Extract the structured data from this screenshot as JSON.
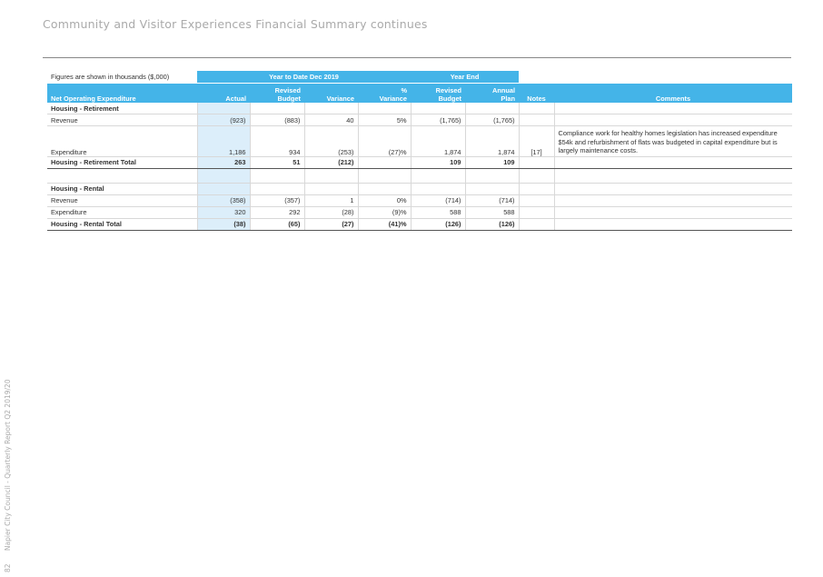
{
  "header": {
    "title": "Community and Visitor Experiences Financial Summary continues"
  },
  "footer": {
    "page_number": "82",
    "text": "Napier City Council - Quarterly Report Q2 2019/20"
  },
  "table": {
    "caption": "Figures are shown in thousands ($,000)",
    "groups": {
      "ytd": "Year to Date Dec 2019",
      "year_end": "Year End"
    },
    "columns": {
      "expenditure": "Net Operating Expenditure",
      "actual": "Actual",
      "revised_budget_1": "Revised",
      "revised_budget_2": "Budget",
      "variance": "Variance",
      "pct_variance_1": "%",
      "pct_variance_2": "Variance",
      "ye_revised_1": "Revised",
      "ye_revised_2": "Budget",
      "annual_plan_1": "Annual",
      "annual_plan_2": "Plan",
      "notes": "Notes",
      "comments": "Comments"
    },
    "sections": [
      {
        "title": "Housing - Retirement",
        "rows": [
          {
            "label": "Revenue",
            "actual": "(923)",
            "revised_budget": "(883)",
            "variance": "40",
            "pct_variance": "5%",
            "ye_revised_budget": "(1,765)",
            "annual_plan": "(1,765)",
            "notes": "",
            "comment": ""
          },
          {
            "label": "Expenditure",
            "actual": "1,186",
            "revised_budget": "934",
            "variance": "(253)",
            "pct_variance": "(27)%",
            "ye_revised_budget": "1,874",
            "annual_plan": "1,874",
            "notes": "[17]",
            "comment": "Compliance work for healthy homes legislation has increased expenditure $54k and refurbishment of flats was budgeted in capital expenditure but is largely maintenance costs."
          }
        ],
        "total": {
          "label": "Housing - Retirement Total",
          "actual": "263",
          "revised_budget": "51",
          "variance": "(212)",
          "pct_variance": "",
          "ye_revised_budget": "109",
          "annual_plan": "109"
        }
      },
      {
        "title": "Housing - Rental",
        "rows": [
          {
            "label": "Revenue",
            "actual": "(358)",
            "revised_budget": "(357)",
            "variance": "1",
            "pct_variance": "0%",
            "ye_revised_budget": "(714)",
            "annual_plan": "(714)",
            "notes": "",
            "comment": ""
          },
          {
            "label": "Expenditure",
            "actual": "320",
            "revised_budget": "292",
            "variance": "(28)",
            "pct_variance": "(9)%",
            "ye_revised_budget": "588",
            "annual_plan": "588",
            "notes": "",
            "comment": ""
          }
        ],
        "total": {
          "label": "Housing - Rental Total",
          "actual": "(38)",
          "revised_budget": "(65)",
          "variance": "(27)",
          "pct_variance": "(41)%",
          "ye_revised_budget": "(126)",
          "annual_plan": "(126)"
        }
      }
    ]
  }
}
